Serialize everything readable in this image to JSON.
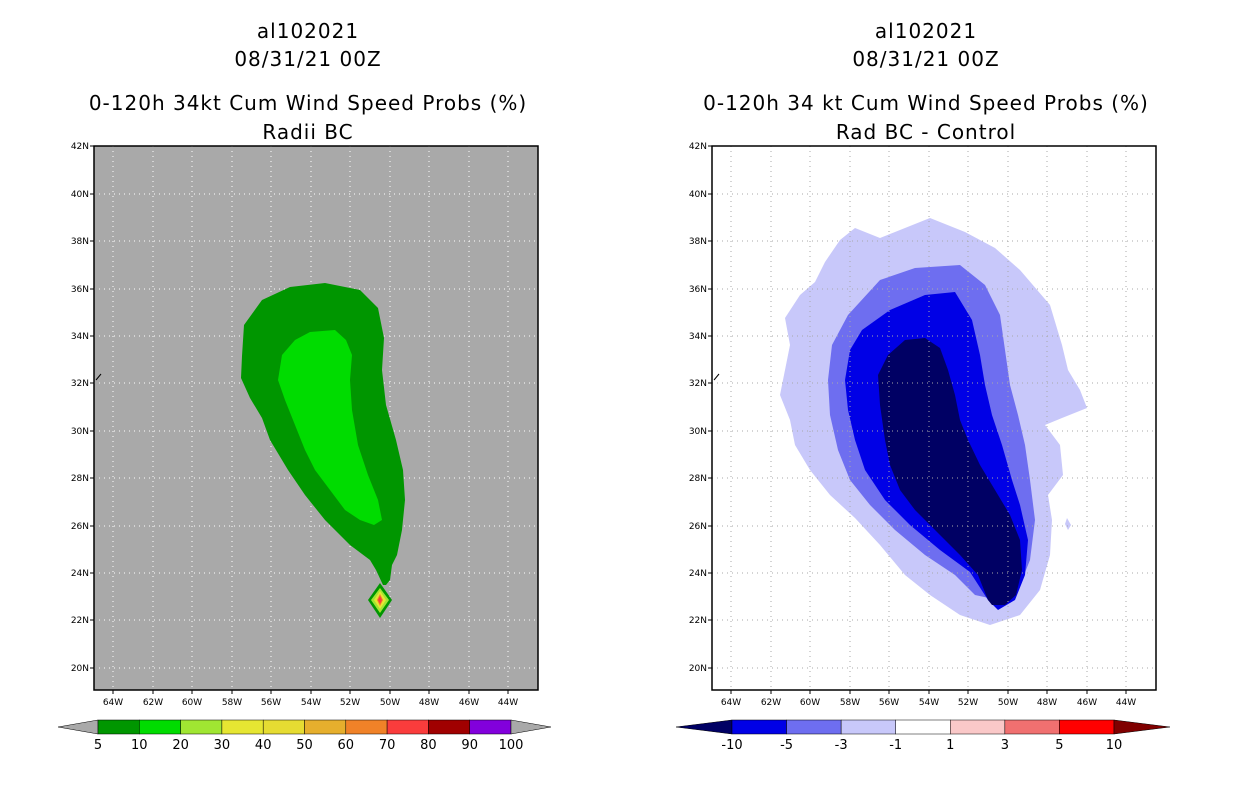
{
  "left_panel": {
    "title_storm": "al102021",
    "title_time": "08/31/21 00Z",
    "title_product": "0-120h 34kt Cum Wind Speed Probs (%)",
    "title_sub": "Radii BC",
    "lat_labels": [
      "42N",
      "40N",
      "38N",
      "36N",
      "34N",
      "32N",
      "30N",
      "28N",
      "26N",
      "24N",
      "22N",
      "20N"
    ],
    "lon_labels": [
      "64W",
      "62W",
      "60W",
      "58W",
      "56W",
      "54W",
      "52W",
      "50W",
      "48W",
      "46W",
      "44W"
    ],
    "colorbar": {
      "labels": [
        "5",
        "10",
        "20",
        "30",
        "40",
        "50",
        "60",
        "70",
        "80",
        "90",
        "100"
      ],
      "colors": [
        "#009600",
        "#00dc00",
        "#a0e632",
        "#e6e632",
        "#e6dc32",
        "#e6af2d",
        "#f08228",
        "#fa3c3c",
        "#a00000",
        "#8200dc"
      ]
    },
    "background_color": "#a9a9a9"
  },
  "right_panel": {
    "title_storm": "al102021",
    "title_time": "08/31/21 00Z",
    "title_product": "0-120h 34 kt Cum Wind Speed Probs (%)",
    "title_sub": "Rad BC - Control",
    "lat_labels": [
      "42N",
      "40N",
      "38N",
      "36N",
      "34N",
      "32N",
      "30N",
      "28N",
      "26N",
      "24N",
      "22N",
      "20N"
    ],
    "lon_labels": [
      "64W",
      "62W",
      "60W",
      "58W",
      "56W",
      "54W",
      "52W",
      "50W",
      "48W",
      "46W",
      "44W"
    ],
    "colorbar": {
      "labels": [
        "-10",
        "-5",
        "-3",
        "-1",
        "1",
        "3",
        "5",
        "10"
      ],
      "colors": [
        "#0000e6",
        "#6e6ef0",
        "#c8c8fa",
        "#ffffff",
        "#fac8c8",
        "#f07070",
        "#ff0000"
      ],
      "low_color": "#000064",
      "high_color": "#800000"
    }
  }
}
